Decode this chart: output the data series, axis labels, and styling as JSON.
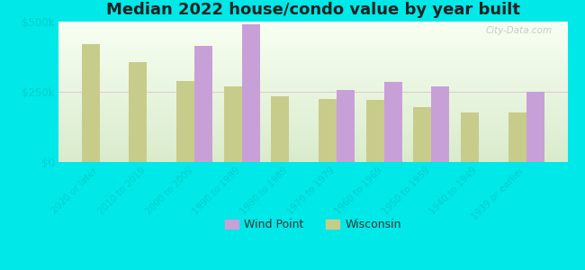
{
  "title": "Median 2022 house/condo value by year built",
  "categories": [
    "2020 or later",
    "2010 to 2019",
    "2000 to 2009",
    "1990 to 1999",
    "1980 to 1989",
    "1970 to 1979",
    "1960 to 1969",
    "1950 to 1959",
    "1940 to 1949",
    "1939 or earlier"
  ],
  "wind_point": [
    null,
    null,
    415000,
    490000,
    null,
    255000,
    285000,
    270000,
    null,
    250000
  ],
  "wisconsin": [
    420000,
    355000,
    290000,
    270000,
    235000,
    225000,
    220000,
    195000,
    175000,
    175000
  ],
  "wind_point_color": "#c8a0d8",
  "wisconsin_color": "#c8cc8a",
  "background_outer": "#00e8e8",
  "ylim": [
    0,
    500000
  ],
  "yticks": [
    0,
    250000,
    500000
  ],
  "ytick_labels": [
    "$0",
    "$250k",
    "$500k"
  ],
  "title_fontsize": 13,
  "legend_labels": [
    "Wind Point",
    "Wisconsin"
  ],
  "watermark": "City-Data.com",
  "label_color": "#00cccc",
  "grid_color": "#ddbbcc"
}
